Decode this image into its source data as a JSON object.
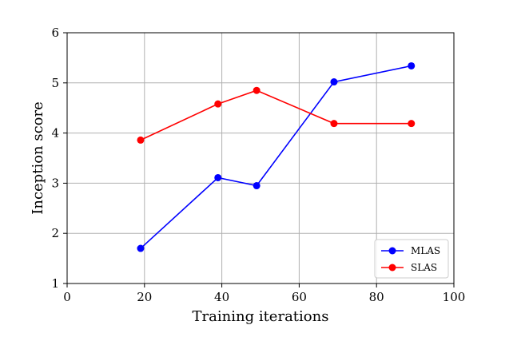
{
  "chart_data": {
    "type": "line",
    "title": "",
    "xlabel": "Training iterations",
    "ylabel": "Inception score",
    "xlim": [
      0,
      100
    ],
    "ylim": [
      1,
      6
    ],
    "xticks": [
      0,
      20,
      40,
      60,
      80,
      100
    ],
    "yticks": [
      1,
      2,
      3,
      4,
      5,
      6
    ],
    "grid": true,
    "legend_position": "bottom-right",
    "series": [
      {
        "name": "MLAS",
        "color": "#0000ff",
        "x": [
          19,
          39,
          49,
          69,
          89
        ],
        "y": [
          1.7,
          3.11,
          2.95,
          5.02,
          5.34
        ]
      },
      {
        "name": "SLAS",
        "color": "#ff0000",
        "x": [
          19,
          39,
          49,
          69,
          89
        ],
        "y": [
          3.86,
          4.58,
          4.85,
          4.19,
          4.19
        ]
      }
    ]
  }
}
